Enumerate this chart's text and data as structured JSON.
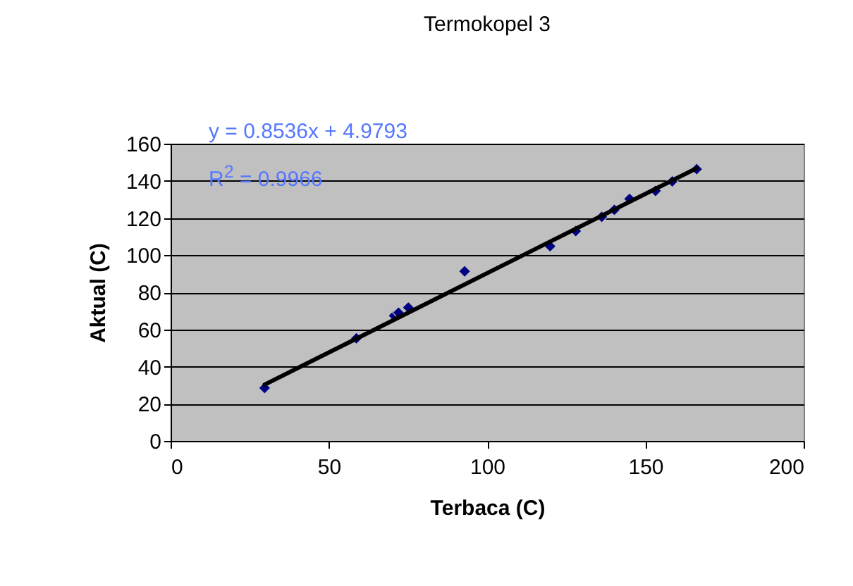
{
  "chart_data": {
    "type": "scatter",
    "title": "Termokopel 3",
    "xlabel": "Terbaca (C)",
    "ylabel": "Aktual (C)",
    "annotations": [
      "y = 0.8536x + 4.9793",
      "R$^{2}$ = 0.9966"
    ],
    "xlim": [
      0,
      200
    ],
    "xticks": [
      0,
      50,
      100,
      150,
      200
    ],
    "ylim": [
      0,
      160
    ],
    "yticks": [
      0,
      20,
      40,
      60,
      80,
      100,
      120,
      140,
      160
    ],
    "grid": "y",
    "marker": "diamond",
    "series": [
      {
        "color": "#000080",
        "x": [
          29.7,
          58.7,
          70.6,
          72,
          75.1,
          92.9,
          119.9,
          128,
          136.2,
          140.2,
          145,
          153.2,
          158.5,
          166.2
        ],
        "values": [
          28.5,
          55.2,
          67.4,
          69,
          71.8,
          91.3,
          104.8,
          113,
          120.6,
          124.4,
          130.3,
          134.6,
          139.7,
          146.3
        ]
      },
      {
        "type": "line",
        "color": "#000000",
        "marker": "none",
        "x": [
          29.7,
          166.2
        ],
        "values": [
          30.3,
          146.8
        ]
      }
    ]
  }
}
